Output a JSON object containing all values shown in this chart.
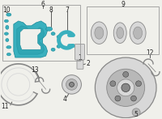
{
  "bg_color": "#f0f0eb",
  "teal": "#3ab0be",
  "teal_dark": "#1a8a98",
  "teal_mid": "#2aa0ae",
  "gray_part": "#b8b8b8",
  "gray_light": "#d8d8d8",
  "gray_dark": "#888888",
  "gray_vdark": "#555555",
  "line_color": "#222222",
  "box_border": "#999999",
  "white": "#ffffff",
  "label_fs": 5.5
}
